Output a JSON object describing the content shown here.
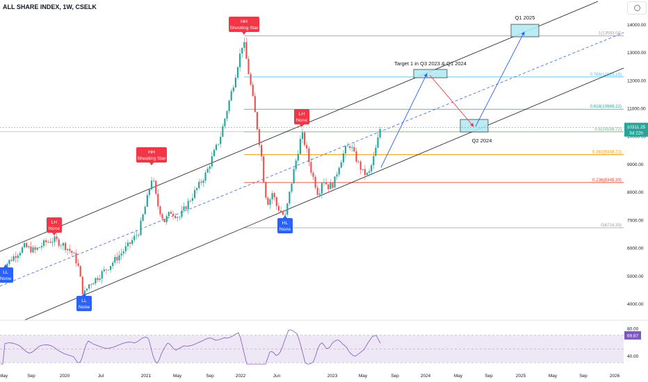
{
  "header": {
    "title": "ALL SHARE INDEX, 1W, CSELK"
  },
  "icons": {
    "settings": "gear-icon"
  },
  "chart_data": {
    "type": "candlestick",
    "price_axis": {
      "ticks": [
        "14000.00",
        "13000.00",
        "12000.00",
        "11000.00",
        "10000.00",
        "9000.00",
        "8000.00",
        "7000.00",
        "6000.00",
        "5000.00",
        "4000.00"
      ],
      "range": [
        3300,
        14600
      ],
      "last_price": "10311.25",
      "countdown": "3d 22h"
    },
    "time_axis": {
      "labels": [
        "May",
        "Sep",
        "2020",
        "Jul",
        "2021",
        "May",
        "Sep",
        "2022",
        "Jun",
        "2023",
        "May",
        "Sep",
        "2024",
        "May",
        "Sep",
        "2025",
        "May",
        "Sep",
        "2026"
      ]
    },
    "fib_levels": [
      {
        "label": "1(13593.04)",
        "value": 13593,
        "color": "#9e9e9e"
      },
      {
        "label": "0.786(12123.15)",
        "value": 12123,
        "color": "#4fc3f7"
      },
      {
        "label": "0.618(10969.22)",
        "value": 10969,
        "color": "#26a69a"
      },
      {
        "label": "0.5(10158.72)",
        "value": 10159,
        "color": "#66bb6a"
      },
      {
        "label": "0.382(9348.21)",
        "value": 9348,
        "color": "#ff9800"
      },
      {
        "label": "0.236(8345.39)",
        "value": 8345,
        "color": "#f44336"
      },
      {
        "label": "0(6724.39)",
        "value": 6724,
        "color": "#9e9e9e"
      }
    ],
    "annotations": [
      {
        "id": "hh1",
        "line1": "HH",
        "line2": "Shooting Star",
        "color": "#f23645"
      },
      {
        "id": "hh2",
        "line1": "HH",
        "line2": "Shooting Star",
        "color": "#f23645"
      },
      {
        "id": "lh1",
        "line1": "LH",
        "line2": "None",
        "color": "#f23645"
      },
      {
        "id": "lh2",
        "line1": "LH",
        "line2": "None",
        "color": "#f23645"
      },
      {
        "id": "ll1",
        "line1": "LL",
        "line2": "None",
        "color": "#2962ff"
      },
      {
        "id": "ll2",
        "line1": "LL",
        "line2": "None",
        "color": "#2962ff"
      },
      {
        "id": "hl1",
        "line1": "HL",
        "line2": "None",
        "color": "#2962ff"
      }
    ],
    "projections": [
      {
        "label": "Target 1 in Q3 2023 & Q1 2024"
      },
      {
        "label": "Q2 2024"
      },
      {
        "label": "Q1 2025"
      }
    ],
    "rsi": {
      "ticks": [
        "80.00",
        "40.00"
      ],
      "value": "69.87",
      "range": [
        20,
        90
      ]
    },
    "colors": {
      "up": "#26a69a",
      "down": "#ef5350",
      "rsi": "#7e57c2",
      "rsi_band": "#ede7f6",
      "channel": "#131722",
      "mid": "#2962ff"
    }
  }
}
